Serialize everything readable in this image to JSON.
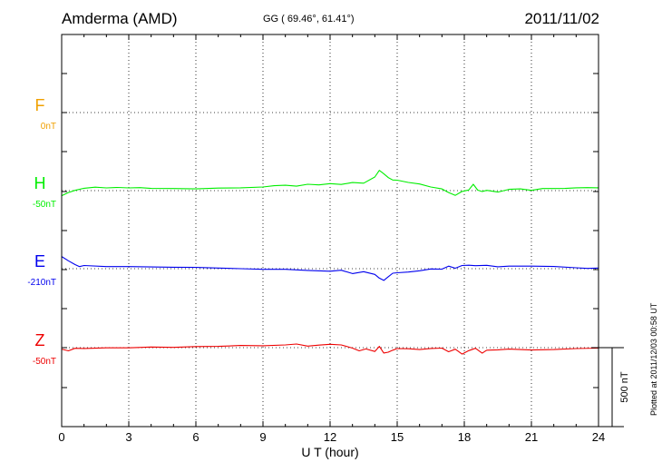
{
  "header": {
    "station": "Amderma (AMD)",
    "coords": "GG ( 69.46°,  61.41°)",
    "date": "2011/11/02"
  },
  "footer": {
    "plotted": "Plotted at 2011/12/03 00:58 UT"
  },
  "chart_data": {
    "type": "line",
    "xlabel": "U T (hour)",
    "xlim": [
      0,
      24
    ],
    "x_ticks": [
      "0",
      "3",
      "6",
      "9",
      "12",
      "15",
      "18",
      "21",
      "24"
    ],
    "scale_bar": {
      "label": "500 nT",
      "nT": 500
    },
    "grid": true,
    "series": [
      {
        "name": "F",
        "baseline_label": "0nT",
        "color": "#f0a000",
        "baseline_nT": 0,
        "x": [],
        "y": []
      },
      {
        "name": "H",
        "baseline_label": "-50nT",
        "color": "#00ee00",
        "baseline_nT": -50,
        "x": [
          0,
          0.3,
          0.6,
          1.0,
          1.5,
          2.0,
          2.5,
          3.0,
          3.5,
          4.0,
          5.0,
          6.0,
          7.0,
          8.0,
          9.0,
          9.5,
          10.0,
          10.5,
          11.0,
          11.5,
          12.0,
          12.5,
          13.0,
          13.5,
          14.0,
          14.2,
          14.4,
          14.6,
          14.8,
          15.0,
          15.5,
          16.0,
          16.5,
          17.0,
          17.3,
          17.6,
          17.9,
          18.2,
          18.4,
          18.6,
          18.8,
          19.0,
          19.5,
          20.0,
          20.5,
          21.0,
          21.5,
          22.0,
          22.5,
          23.0,
          23.5,
          24.0
        ],
        "y": [
          -82,
          -62,
          -48,
          -35,
          -28,
          -33,
          -30,
          -33,
          -31,
          -36,
          -37,
          -39,
          -34,
          -32,
          -27,
          -19,
          -16,
          -22,
          -10,
          -14,
          -6,
          -11,
          1,
          -3,
          36,
          78,
          57,
          33,
          17,
          16,
          2,
          -8,
          -27,
          -39,
          -62,
          -80,
          -55,
          -46,
          -10,
          -47,
          -56,
          -48,
          -59,
          -42,
          -39,
          -48,
          -37,
          -37,
          -36,
          -32,
          -31,
          -32
        ]
      },
      {
        "name": "E",
        "baseline_label": "-210nT",
        "color": "#0000ee",
        "baseline_nT": -210,
        "x": [
          0,
          0.3,
          0.6,
          0.8,
          1.0,
          2.0,
          3.0,
          4.0,
          5.0,
          6.0,
          7.0,
          8.0,
          9.0,
          10.0,
          11.0,
          12.0,
          12.5,
          13.0,
          13.5,
          14.0,
          14.2,
          14.4,
          14.6,
          14.8,
          15.0,
          15.5,
          16.0,
          16.5,
          17.0,
          17.3,
          17.6,
          17.9,
          18.2,
          18.5,
          19.0,
          19.5,
          20.0,
          21.0,
          22.0,
          23.0,
          23.5,
          24.0
        ],
        "y": [
          -133,
          -160,
          -184,
          -197,
          -190,
          -197,
          -197,
          -199,
          -201,
          -202,
          -206,
          -210,
          -214,
          -214,
          -221,
          -226,
          -220,
          -241,
          -229,
          -246,
          -270,
          -284,
          -261,
          -239,
          -236,
          -231,
          -223,
          -212,
          -213,
          -194,
          -207,
          -190,
          -188,
          -191,
          -189,
          -198,
          -194,
          -194,
          -196,
          -204,
          -208,
          -206
        ]
      },
      {
        "name": "Z",
        "baseline_label": "-50nT",
        "color": "#ee0000",
        "baseline_nT": -50,
        "x": [
          0,
          0.3,
          0.6,
          1.0,
          2.0,
          3.0,
          4.0,
          5.0,
          6.0,
          7.0,
          8.0,
          9.0,
          10.0,
          10.5,
          11.0,
          11.5,
          12.0,
          12.5,
          13.0,
          13.3,
          13.6,
          14.0,
          14.2,
          14.4,
          14.6,
          14.8,
          15.0,
          15.5,
          16.0,
          16.5,
          17.0,
          17.3,
          17.6,
          17.9,
          18.2,
          18.5,
          18.8,
          19.0,
          19.5,
          20.0,
          21.0,
          22.0,
          23.0,
          24.0
        ],
        "y": [
          -59,
          -70,
          -54,
          -55,
          -51,
          -51,
          -46,
          -48,
          -43,
          -42,
          -36,
          -38,
          -33,
          -27,
          -40,
          -34,
          -29,
          -33,
          -53,
          -70,
          -58,
          -74,
          -42,
          -84,
          -79,
          -66,
          -56,
          -57,
          -62,
          -55,
          -53,
          -76,
          -60,
          -91,
          -69,
          -54,
          -85,
          -66,
          -64,
          -59,
          -65,
          -62,
          -56,
          -53
        ]
      }
    ]
  }
}
